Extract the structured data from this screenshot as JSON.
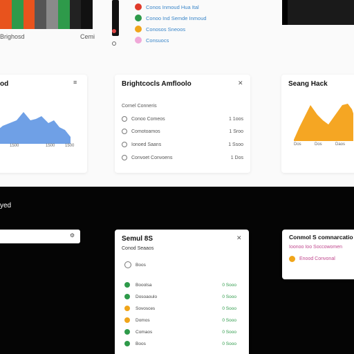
{
  "top_strip": {
    "colors": [
      "#e8531d",
      "#2e9a4a",
      "#e8531d",
      "#555555",
      "#8a8a8a",
      "#2e9a4a",
      "#222222",
      "#111111"
    ],
    "label_left": "Brighosd",
    "label_right": "Cemi"
  },
  "top_legend": [
    {
      "color": "#e03a2a",
      "label": "Conos Inmoud Hua Ital"
    },
    {
      "color": "#2e9a4a",
      "label": "Conoo Ind Semde Inmoud"
    },
    {
      "color": "#f0a51a",
      "label": "Conosos Sneoos"
    },
    {
      "color": "#f0a8d8",
      "label": "Consuocs"
    }
  ],
  "card_left": {
    "title": "od",
    "axis_labels": [
      "1500",
      "1500",
      "1500"
    ],
    "color": "#6fa0e6"
  },
  "card_mid": {
    "title": "Brightcocls Amfloolo",
    "subtitle": "Cornel Conneris",
    "rows": [
      {
        "label": "Conoo Comeos",
        "value": "1 1oos"
      },
      {
        "label": "Comotoamos",
        "value": "1 Sroo"
      },
      {
        "label": "Ionoed Saans",
        "value": "1 Ssoo"
      },
      {
        "label": "Convoet Convoens",
        "value": "1 Dos"
      }
    ]
  },
  "card_right": {
    "title": "Seang Hack",
    "axis_labels": [
      "Dos",
      "Dos",
      "Daos"
    ],
    "color": "#f5a623"
  },
  "bottom": {
    "section_title": "yed",
    "search_icon": "gear-icon",
    "list_card": {
      "title": "Semul 8S",
      "subtitle": "Conod Seaaos",
      "filter_label": "Boos",
      "items": [
        {
          "color": "#2e9a4a",
          "label": "Booolsa",
          "value": "0 Sooo"
        },
        {
          "color": "#2e9a4a",
          "label": "Dosoaoulo",
          "value": "0 Sooo"
        },
        {
          "color": "#f0a51a",
          "label": "Sovosces",
          "value": "0 Sooo"
        },
        {
          "color": "#f0a51a",
          "label": "Domos",
          "value": "0 Sooo"
        },
        {
          "color": "#2e9a4a",
          "label": "Comaos",
          "value": "0 Sooo"
        },
        {
          "color": "#2e9a4a",
          "label": "Boos",
          "value": "0 Sooo"
        }
      ]
    },
    "right_card": {
      "title": "Conmol S comnarcatio",
      "subtitle": "Ioonoo Ioo Soccowomen",
      "item": "Enood Convonal"
    }
  }
}
